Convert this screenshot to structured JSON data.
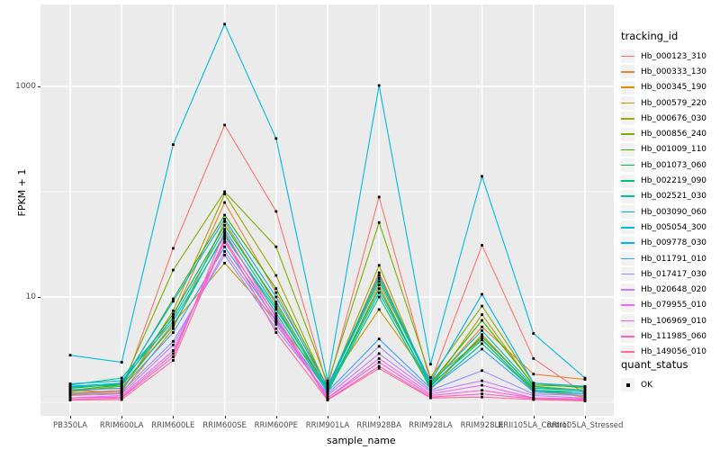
{
  "figure": {
    "y_axis_title": "FPKM + 1",
    "x_axis_title": "sample_name",
    "legend1_title": "tracking_id",
    "legend2_title": "quant_status",
    "quant_status_label": "OK",
    "colors": {
      "panel_background": "#EBEBEB",
      "gridline": "#FFFFFF",
      "point": "#000000",
      "axis_text": "#4D4D4D",
      "legend_key_background": "#F2F2F2"
    }
  },
  "chart_data": {
    "type": "line",
    "title": "",
    "xlabel": "sample_name",
    "ylabel": "FPKM + 1",
    "y_scale": "log10",
    "y_tick_labels": [
      {
        "value": 1000,
        "label": "1000"
      },
      {
        "value": 10,
        "label": "10"
      }
    ],
    "y_major_gridlines": [
      10,
      1000
    ],
    "y_minor_gridlines": [
      1,
      100
    ],
    "ylim": [
      1,
      6000
    ],
    "grid": "on",
    "legend_position": "right",
    "marker": "black-square",
    "categories": [
      "PB350LA",
      "RRIM600LA",
      "RRIM600LE",
      "RRIM600SE",
      "RRIM600PE",
      "RRIM901LA",
      "RRIM928BA",
      "RRIM928LA",
      "RRIM928LE",
      "RRII105LA_Control",
      "RRII105LA_Stressed"
    ],
    "series": [
      {
        "name": "Hb_000123_310",
        "color": "#F8766D",
        "values": [
          1.3,
          1.25,
          29,
          430,
          65,
          1.4,
          89,
          1.55,
          31,
          2.6,
          1.2
        ]
      },
      {
        "name": "Hb_000333_130",
        "color": "#EA8331",
        "values": [
          1.22,
          1.3,
          6.5,
          79,
          11,
          1.3,
          17,
          1.45,
          5.2,
          1.85,
          1.65
        ]
      },
      {
        "name": "Hb_000345_190",
        "color": "#D89000",
        "values": [
          1.18,
          1.22,
          5.0,
          52,
          8.5,
          1.22,
          13,
          1.32,
          4.4,
          1.32,
          1.12
        ]
      },
      {
        "name": "Hb_000579_220",
        "color": "#C09B00",
        "values": [
          1.32,
          1.36,
          5.6,
          21,
          6.0,
          1.48,
          7.6,
          1.6,
          4.0,
          1.26,
          1.16
        ]
      },
      {
        "name": "Hb_000676_030",
        "color": "#A3A500",
        "values": [
          1.22,
          1.26,
          7.4,
          95,
          16,
          1.34,
          20,
          1.38,
          6.8,
          1.42,
          1.3
        ]
      },
      {
        "name": "Hb_000856_240",
        "color": "#7CAE00",
        "values": [
          1.26,
          1.42,
          18,
          100,
          30,
          1.52,
          51,
          1.72,
          8.2,
          1.52,
          1.36
        ]
      },
      {
        "name": "Hb_001009_110",
        "color": "#39B600",
        "values": [
          1.3,
          1.46,
          9.6,
          60,
          12,
          1.4,
          15,
          1.52,
          6.0,
          1.46,
          1.4
        ]
      },
      {
        "name": "Hb_001073_060",
        "color": "#00BB4E",
        "values": [
          1.36,
          1.5,
          6.9,
          48,
          9.0,
          1.3,
          12,
          1.42,
          4.2,
          1.36,
          1.3
        ]
      },
      {
        "name": "Hb_002219_090",
        "color": "#00BF7D",
        "values": [
          1.4,
          1.46,
          5.3,
          40,
          7.0,
          1.26,
          10,
          1.36,
          3.6,
          1.3,
          1.26
        ]
      },
      {
        "name": "Hb_002521_030",
        "color": "#00C1A3",
        "values": [
          1.46,
          1.7,
          6.3,
          44,
          8.0,
          1.3,
          11,
          1.46,
          3.9,
          1.3,
          1.2
        ]
      },
      {
        "name": "Hb_003090_060",
        "color": "#00BFC4",
        "values": [
          1.5,
          1.6,
          5.9,
          38,
          7.6,
          1.36,
          14,
          1.5,
          4.8,
          1.4,
          1.3
        ]
      },
      {
        "name": "Hb_005054_300",
        "color": "#00BAE0",
        "values": [
          2.8,
          2.4,
          280,
          3900,
          320,
          1.6,
          1020,
          2.3,
          140,
          4.5,
          1.7
        ]
      },
      {
        "name": "Hb_009778_030",
        "color": "#00B0F6",
        "values": [
          1.42,
          1.52,
          9.1,
          55,
          10,
          1.42,
          16,
          1.56,
          10.6,
          1.52,
          1.42
        ]
      },
      {
        "name": "Hb_011791_010",
        "color": "#35A2FF",
        "values": [
          1.3,
          1.36,
          4.6,
          30,
          6.0,
          1.26,
          4.0,
          1.36,
          3.2,
          1.26,
          1.2
        ]
      },
      {
        "name": "Hb_017417_030",
        "color": "#9590FF",
        "values": [
          1.2,
          1.26,
          3.8,
          25,
          5.0,
          1.2,
          3.4,
          1.3,
          2.0,
          1.2,
          1.16
        ]
      },
      {
        "name": "Hb_020648_020",
        "color": "#C77CFF",
        "values": [
          1.16,
          1.2,
          3.5,
          27,
          5.5,
          1.16,
          2.9,
          1.26,
          1.6,
          1.16,
          1.1
        ]
      },
      {
        "name": "Hb_079955_010",
        "color": "#E76BF3",
        "values": [
          1.1,
          1.16,
          3.1,
          33,
          6.6,
          1.1,
          2.6,
          1.2,
          1.45,
          1.1,
          1.08
        ]
      },
      {
        "name": "Hb_106969_010",
        "color": "#FA62DB",
        "values": [
          1.1,
          1.12,
          2.9,
          36,
          5.8,
          1.1,
          2.4,
          1.16,
          1.3,
          1.1,
          1.06
        ]
      },
      {
        "name": "Hb_111985_060",
        "color": "#FF62BC",
        "values": [
          1.06,
          1.1,
          2.7,
          42,
          6.3,
          1.06,
          2.2,
          1.12,
          1.2,
          1.08,
          1.05
        ]
      },
      {
        "name": "Hb_149056_010",
        "color": "#FF6A98",
        "values": [
          1.05,
          1.06,
          2.5,
          35,
          4.6,
          1.05,
          2.1,
          1.1,
          1.12,
          1.06,
          1.03
        ]
      }
    ]
  }
}
